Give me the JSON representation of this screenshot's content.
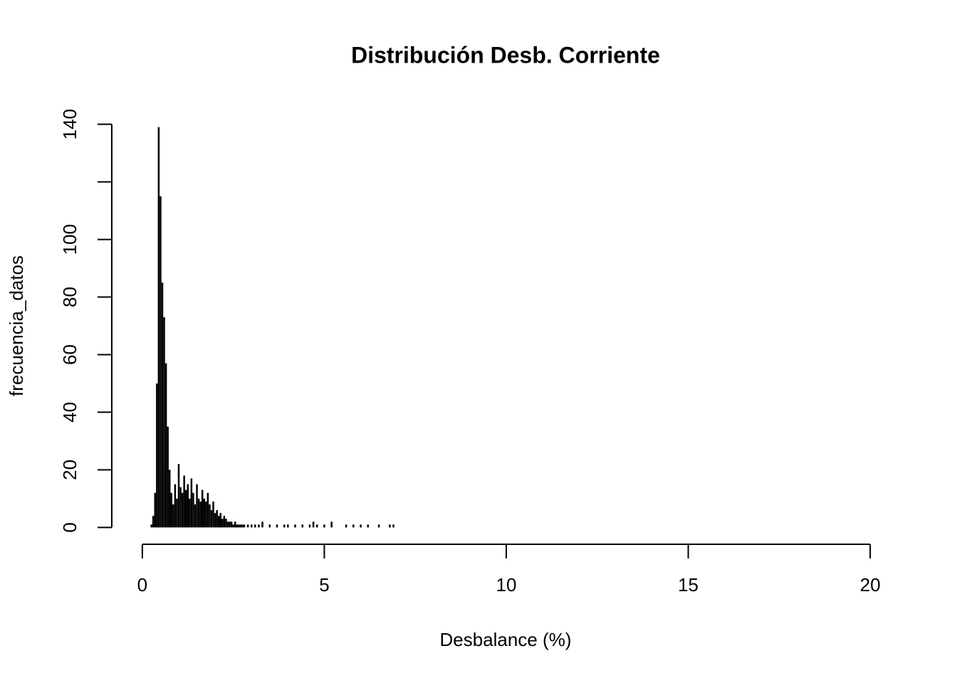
{
  "chart_data": {
    "type": "needle",
    "title": "Distribución Desb. Corriente",
    "x_label": "Desbalance (%)",
    "y_label": "frecuencia_datos",
    "color": "#000000",
    "x": [
      0.25,
      0.3,
      0.35,
      0.4,
      0.45,
      0.5,
      0.55,
      0.6,
      0.65,
      0.7,
      0.75,
      0.8,
      0.85,
      0.9,
      0.95,
      1.0,
      1.05,
      1.1,
      1.15,
      1.2,
      1.25,
      1.3,
      1.35,
      1.4,
      1.45,
      1.5,
      1.55,
      1.6,
      1.65,
      1.7,
      1.75,
      1.8,
      1.85,
      1.9,
      1.95,
      2.0,
      2.05,
      2.1,
      2.15,
      2.2,
      2.25,
      2.3,
      2.35,
      2.4,
      2.45,
      2.5,
      2.55,
      2.6,
      2.65,
      2.7,
      2.75,
      2.8,
      2.9,
      3.0,
      3.1,
      3.2,
      3.3,
      3.5,
      3.7,
      3.9,
      4.0,
      4.2,
      4.4,
      4.6,
      4.7,
      4.8,
      5.0,
      5.2,
      5.6,
      5.8,
      6.0,
      6.2,
      6.5,
      6.8,
      6.9
    ],
    "values": [
      1,
      4,
      12,
      50,
      139,
      115,
      85,
      73,
      57,
      35,
      20,
      12,
      8,
      15,
      10,
      22,
      14,
      12,
      18,
      13,
      15,
      10,
      17,
      12,
      8,
      15,
      10,
      9,
      13,
      10,
      9,
      12,
      8,
      6,
      9,
      5,
      6,
      4,
      5,
      3,
      4,
      3,
      2,
      2,
      2,
      1,
      2,
      1,
      1,
      1,
      1,
      1,
      1,
      1,
      1,
      1,
      2,
      1,
      1,
      1,
      1,
      1,
      1,
      1,
      2,
      1,
      1,
      2,
      1,
      1,
      1,
      1,
      1,
      1,
      1
    ],
    "xlim": [
      -0.8,
      20.8
    ],
    "ylim": [
      -5.6,
      145.6
    ],
    "xticks": [
      0,
      5,
      10,
      15,
      20
    ],
    "yticks": [
      0,
      20,
      40,
      60,
      80,
      100,
      120,
      140
    ]
  }
}
